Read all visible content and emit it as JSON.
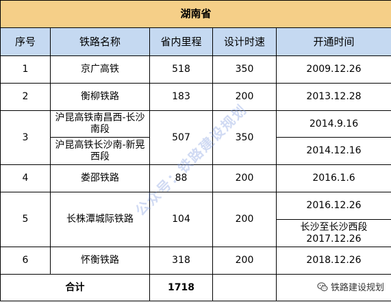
{
  "title": "湖南省",
  "headers": [
    "序号",
    "铁路名称",
    "省内里程",
    "设计时速",
    "开通时间"
  ],
  "rows": [
    {
      "no": "1",
      "name": "京广高铁",
      "km": "518",
      "speed": "350",
      "dates": [
        "2009.12.26"
      ]
    },
    {
      "no": "2",
      "name": "衡柳铁路",
      "km": "183",
      "speed": "200",
      "dates": [
        "2013.12.28"
      ]
    },
    {
      "no": "3",
      "names": [
        "沪昆高铁南昌西-长沙南段",
        "沪昆高铁长沙南-新晃西段"
      ],
      "km": "507",
      "speed": "350",
      "dates": [
        "2014.9.16",
        "2014.12.16"
      ]
    },
    {
      "no": "4",
      "name": "娄邵铁路",
      "km": "88",
      "speed": "200",
      "dates": [
        "2016.1.6"
      ]
    },
    {
      "no": "5",
      "name": "长株潭城际铁路",
      "km": "104",
      "speed": "200",
      "dates": [
        "2016.12.26",
        "长沙至长沙西段2017.12.26"
      ]
    },
    {
      "no": "6",
      "name": "怀衡铁路",
      "km": "318",
      "speed": "200",
      "dates": [
        "2018.12.26"
      ]
    }
  ],
  "total": {
    "label": "合计",
    "km": "1718"
  },
  "watermark": "公众号：铁路建设规划",
  "brand": "铁路建设规划"
}
